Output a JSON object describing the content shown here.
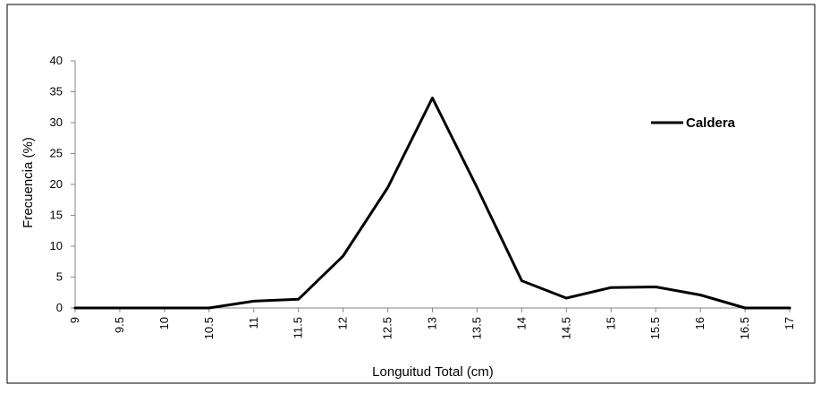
{
  "chart_data": {
    "type": "line",
    "title": "",
    "xlabel": "Longuitud Total (cm)",
    "ylabel": "Frecuencia  (%)",
    "x": [
      9,
      9.5,
      10,
      10.5,
      11,
      11.5,
      12,
      12.5,
      13,
      13.5,
      14,
      14.5,
      15,
      15.5,
      16,
      16.5,
      17
    ],
    "xtick_labels": [
      "9",
      "9.5",
      "10",
      "10.5",
      "11",
      "11.5",
      "12",
      "12.5",
      "13",
      "13.5",
      "14",
      "14.5",
      "15",
      "15.5",
      "16",
      "16.5",
      "17"
    ],
    "ytick_labels": [
      "0",
      "5",
      "10",
      "15",
      "20",
      "25",
      "30",
      "35",
      "40"
    ],
    "ylim": [
      0,
      40
    ],
    "grid": false,
    "legend_position": "top-right",
    "series": [
      {
        "name": "Caldera",
        "color": "#000000",
        "values": [
          0,
          0,
          0,
          0,
          1.1,
          1.4,
          8.4,
          19.5,
          34,
          19.5,
          4.4,
          1.6,
          3.3,
          3.4,
          2.1,
          0,
          0
        ]
      }
    ]
  }
}
